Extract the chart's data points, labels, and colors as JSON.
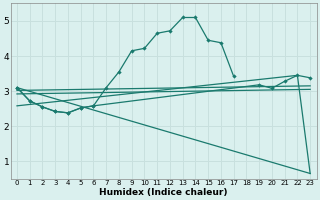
{
  "xlabel": "Humidex (Indice chaleur)",
  "xlim": [
    -0.5,
    23.5
  ],
  "ylim": [
    0.5,
    5.5
  ],
  "xticks": [
    0,
    1,
    2,
    3,
    4,
    5,
    6,
    7,
    8,
    9,
    10,
    11,
    12,
    13,
    14,
    15,
    16,
    17,
    18,
    19,
    20,
    21,
    22,
    23
  ],
  "yticks": [
    1,
    2,
    3,
    4,
    5
  ],
  "bg_color": "#daf0ee",
  "line_color": "#1a7a6e",
  "grid_color": "#c8e0de",
  "curve_peak": {
    "x": [
      0,
      1,
      2,
      3,
      4,
      5,
      6,
      7,
      8,
      9,
      10,
      11,
      12,
      13,
      14,
      15,
      16,
      17
    ],
    "y": [
      3.1,
      2.72,
      2.55,
      2.42,
      2.38,
      2.52,
      2.58,
      3.1,
      3.55,
      4.15,
      4.22,
      4.65,
      4.72,
      5.1,
      5.1,
      4.45,
      4.38,
      3.42
    ]
  },
  "curve_flat_markers": {
    "x": [
      0,
      1,
      2,
      3,
      4,
      5,
      6,
      19,
      20,
      21,
      22,
      23
    ],
    "y": [
      3.1,
      2.72,
      2.55,
      2.42,
      2.38,
      2.52,
      2.58,
      3.18,
      3.08,
      3.28,
      3.45,
      3.38
    ]
  },
  "curve_mid_flat": {
    "x": [
      0,
      23
    ],
    "y": [
      3.02,
      3.15
    ]
  },
  "curve_lower_flat": {
    "x": [
      0,
      23
    ],
    "y": [
      2.92,
      3.05
    ]
  },
  "curve_down1": {
    "x": [
      0,
      23
    ],
    "y": [
      3.1,
      0.65
    ]
  },
  "curve_down2": {
    "x": [
      0,
      22,
      23
    ],
    "y": [
      2.58,
      3.45,
      0.65
    ]
  }
}
